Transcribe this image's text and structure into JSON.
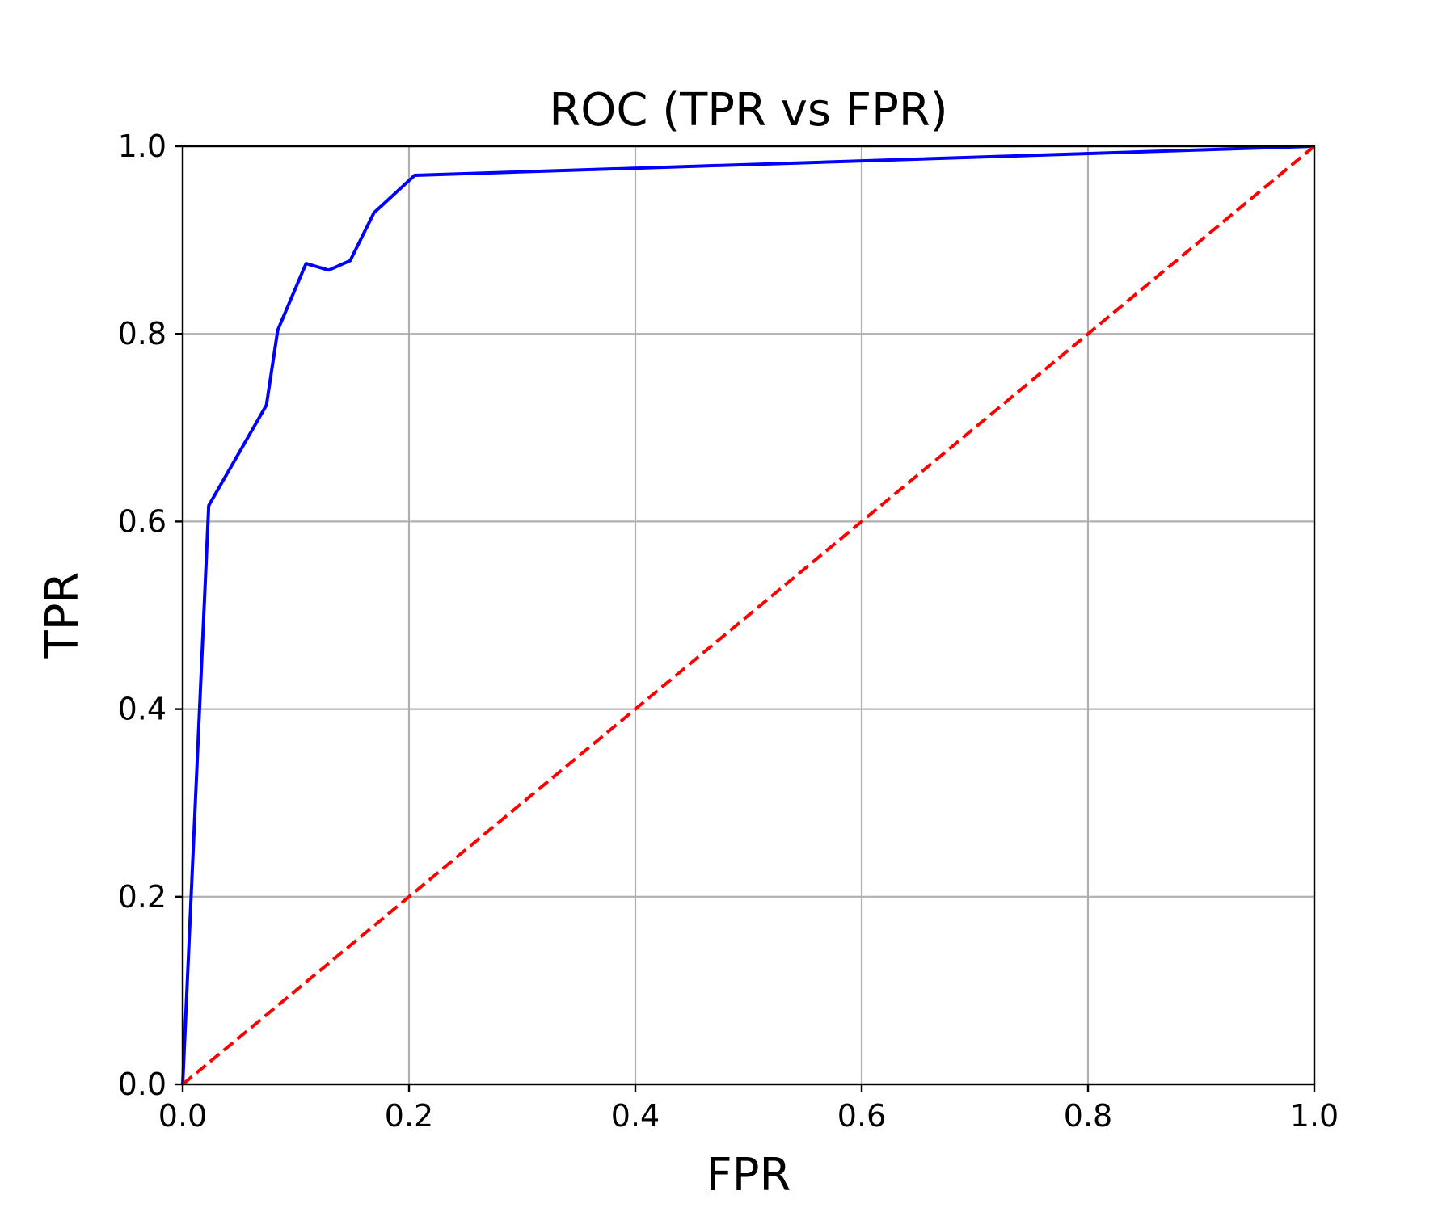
{
  "chart_data": {
    "type": "line",
    "title": "ROC (TPR vs FPR)",
    "xlabel": "FPR",
    "ylabel": "TPR",
    "xlim": [
      0.0,
      1.0
    ],
    "ylim": [
      0.0,
      1.0
    ],
    "grid": true,
    "x_ticks": [
      "0.0",
      "0.2",
      "0.4",
      "0.6",
      "0.8",
      "1.0"
    ],
    "y_ticks": [
      "0.0",
      "0.2",
      "0.4",
      "0.6",
      "0.8",
      "1.0"
    ],
    "series": [
      {
        "color": "#0000ff",
        "style": "solid",
        "x": [
          0.0,
          0.023,
          0.074,
          0.084,
          0.109,
          0.129,
          0.148,
          0.169,
          0.205,
          1.0
        ],
        "y": [
          0.0,
          0.617,
          0.724,
          0.804,
          0.875,
          0.868,
          0.878,
          0.929,
          0.969,
          1.0
        ]
      },
      {
        "color": "#ff0000",
        "style": "dashed",
        "x": [
          0.0,
          1.0
        ],
        "y": [
          0.0,
          1.0
        ]
      }
    ]
  }
}
